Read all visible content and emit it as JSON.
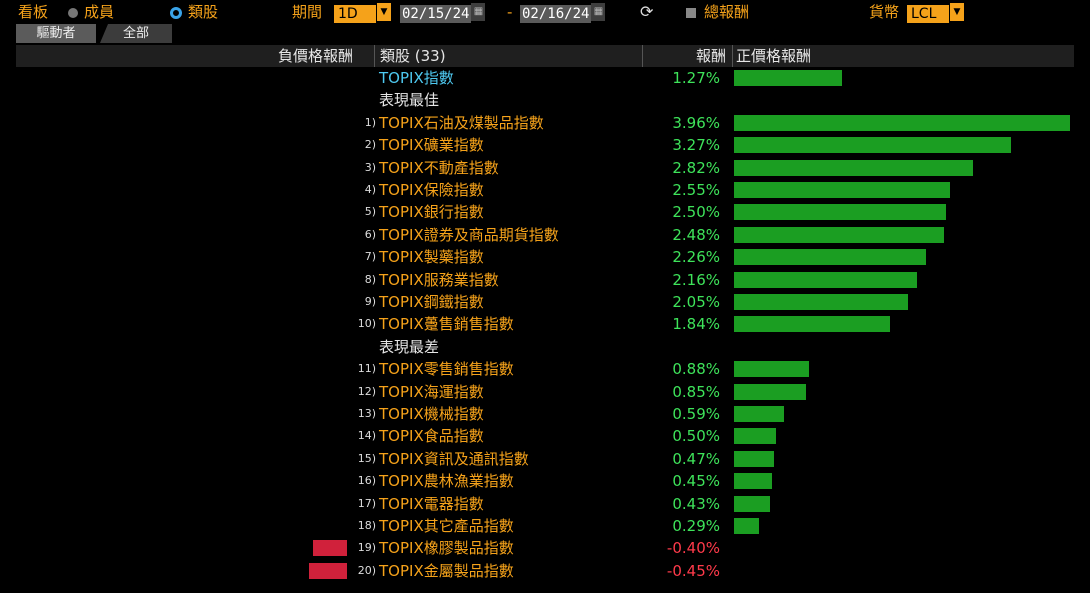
{
  "toolbar": {
    "board_label": "看板",
    "option_members": "成員",
    "option_sectors": "類股",
    "period_label": "期間",
    "period_value": "1D",
    "date_start": "02/15/24",
    "date_sep": "-",
    "date_end": "02/16/24",
    "total_return_label": "總報酬",
    "currency_label": "貨幣",
    "currency_value": "LCL"
  },
  "tabs": [
    "驅動者",
    "全部"
  ],
  "columns": {
    "negative": "負價格報酬",
    "sector": "類股 (33)",
    "return": "報酬",
    "positive": "正價格報酬"
  },
  "index_row": {
    "name": "TOPIX指數",
    "value": "1.27%",
    "return": 1.27
  },
  "best_label": "表現最佳",
  "worst_label": "表現最差",
  "best": [
    {
      "rank": "1)",
      "name": "TOPIX石油及煤製品指數",
      "value": "3.96%",
      "return": 3.96
    },
    {
      "rank": "2)",
      "name": "TOPIX礦業指數",
      "value": "3.27%",
      "return": 3.27
    },
    {
      "rank": "3)",
      "name": "TOPIX不動產指數",
      "value": "2.82%",
      "return": 2.82
    },
    {
      "rank": "4)",
      "name": "TOPIX保險指數",
      "value": "2.55%",
      "return": 2.55
    },
    {
      "rank": "5)",
      "name": "TOPIX銀行指數",
      "value": "2.50%",
      "return": 2.5
    },
    {
      "rank": "6)",
      "name": "TOPIX證券及商品期貨指數",
      "value": "2.48%",
      "return": 2.48
    },
    {
      "rank": "7)",
      "name": "TOPIX製藥指數",
      "value": "2.26%",
      "return": 2.26
    },
    {
      "rank": "8)",
      "name": "TOPIX服務業指數",
      "value": "2.16%",
      "return": 2.16
    },
    {
      "rank": "9)",
      "name": "TOPIX鋼鐵指數",
      "value": "2.05%",
      "return": 2.05
    },
    {
      "rank": "10)",
      "name": "TOPIX躉售銷售指數",
      "value": "1.84%",
      "return": 1.84
    }
  ],
  "worst": [
    {
      "rank": "11)",
      "name": "TOPIX零售銷售指數",
      "value": "0.88%",
      "return": 0.88
    },
    {
      "rank": "12)",
      "name": "TOPIX海運指數",
      "value": "0.85%",
      "return": 0.85
    },
    {
      "rank": "13)",
      "name": "TOPIX機械指數",
      "value": "0.59%",
      "return": 0.59
    },
    {
      "rank": "14)",
      "name": "TOPIX食品指數",
      "value": "0.50%",
      "return": 0.5
    },
    {
      "rank": "15)",
      "name": "TOPIX資訊及通訊指數",
      "value": "0.47%",
      "return": 0.47
    },
    {
      "rank": "16)",
      "name": "TOPIX農林漁業指數",
      "value": "0.45%",
      "return": 0.45
    },
    {
      "rank": "17)",
      "name": "TOPIX電器指數",
      "value": "0.43%",
      "return": 0.43
    },
    {
      "rank": "18)",
      "name": "TOPIX其它產品指數",
      "value": "0.29%",
      "return": 0.29
    },
    {
      "rank": "19)",
      "name": "TOPIX橡膠製品指數",
      "value": "-0.40%",
      "return": -0.4
    },
    {
      "rank": "20)",
      "name": "TOPIX金屬製品指數",
      "value": "-0.45%",
      "return": -0.45
    }
  ],
  "colors": {
    "positive_bar": "#1b9e22",
    "negative_bar": "#d0213b",
    "positive_text": "#3ee35a",
    "negative_text": "#ff3a4a",
    "accent": "#f5a21a"
  }
}
